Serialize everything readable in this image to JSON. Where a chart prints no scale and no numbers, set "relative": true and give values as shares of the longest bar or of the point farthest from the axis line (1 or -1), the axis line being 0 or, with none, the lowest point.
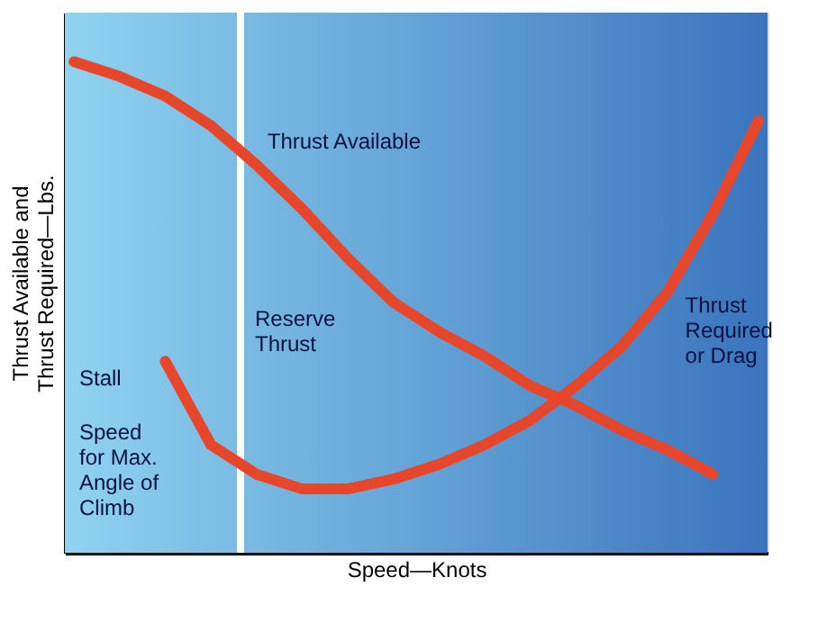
{
  "chart_data": {
    "type": "line",
    "relative": true,
    "xlabel": "Speed—Knots",
    "ylabel": "Thrust Available and\nThrust Required—Lbs.",
    "tick_labels": false,
    "categories": [
      null,
      null,
      null,
      null,
      null,
      null,
      null,
      null,
      null,
      null,
      null,
      null,
      null,
      null,
      null,
      null
    ],
    "series": [
      {
        "name": "Thrust Available",
        "color": "#e8462a",
        "values": [
          1,
          0.97,
          0.93,
          0.87,
          0.79,
          0.7,
          0.6,
          0.51,
          0.45,
          0.4,
          0.34,
          0.3,
          0.25,
          0.21,
          0.16,
          null
        ]
      },
      {
        "name": "Thrust\nRequired\nor Drag",
        "color": "#e8462a",
        "values": [
          null,
          null,
          0.39,
          0.22,
          0.16,
          0.13,
          0.13,
          0.15,
          0.18,
          0.22,
          0.27,
          0.34,
          0.42,
          0.53,
          0.69,
          0.88
        ]
      }
    ],
    "ref_lines": [
      {
        "axis": "x",
        "color": "#ffffff"
      }
    ],
    "annotations": [
      "Reserve\nThrust",
      "Stall",
      "Speed\nfor Max.\nAngle of\nClimb"
    ]
  }
}
